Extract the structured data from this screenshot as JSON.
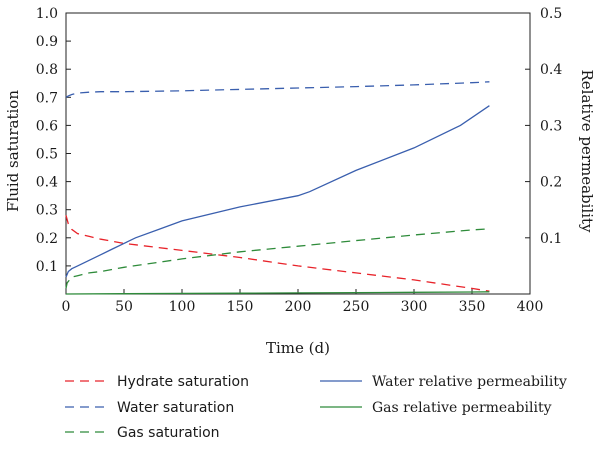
{
  "chart_data": {
    "type": "line",
    "xlabel": "Time (d)",
    "ylabel_left": "Fluid saturation",
    "ylabel_right": "Relative permeability",
    "xlim": [
      0,
      400
    ],
    "ylim_left": [
      0,
      1.0
    ],
    "ylim_right": [
      0,
      0.5
    ],
    "x_ticks": [
      "0",
      "50",
      "100",
      "150",
      "200",
      "250",
      "300",
      "350",
      "400"
    ],
    "y_left_ticks": [
      "0.1",
      "0.2",
      "0.3",
      "0.4",
      "0.5",
      "0.6",
      "0.7",
      "0.8",
      "0.9",
      "1.0"
    ],
    "y_right_ticks": [
      "0.1",
      "0.2",
      "0.3",
      "0.4",
      "0.5"
    ],
    "grid": false,
    "legend_position": "bottom",
    "series": [
      {
        "name": "Hydrate saturation",
        "axis": "left",
        "style": "dashed",
        "color": "#e8232a",
        "x": [
          0,
          2,
          5,
          10,
          20,
          30,
          50,
          100,
          150,
          200,
          250,
          300,
          350,
          365
        ],
        "y": [
          0.28,
          0.25,
          0.23,
          0.215,
          0.205,
          0.195,
          0.18,
          0.155,
          0.13,
          0.1,
          0.075,
          0.05,
          0.02,
          0.01
        ]
      },
      {
        "name": "Water saturation",
        "axis": "left",
        "style": "dashed",
        "color": "#3a5fae",
        "x": [
          0,
          2,
          5,
          10,
          20,
          30,
          50,
          100,
          150,
          200,
          250,
          300,
          350,
          365
        ],
        "y": [
          0.7,
          0.705,
          0.71,
          0.715,
          0.718,
          0.72,
          0.72,
          0.723,
          0.728,
          0.733,
          0.738,
          0.744,
          0.752,
          0.755
        ]
      },
      {
        "name": "Gas saturation",
        "axis": "left",
        "style": "dashed",
        "color": "#2e8b3a",
        "x": [
          0,
          1,
          3,
          5,
          10,
          20,
          30,
          50,
          100,
          150,
          200,
          250,
          300,
          350,
          365
        ],
        "y": [
          0.02,
          0.04,
          0.05,
          0.06,
          0.065,
          0.075,
          0.08,
          0.095,
          0.125,
          0.15,
          0.17,
          0.19,
          0.21,
          0.228,
          0.232
        ]
      },
      {
        "name": "Water relative permeability",
        "axis": "right",
        "style": "solid",
        "color": "#3a5fae",
        "x": [
          0,
          2,
          5,
          10,
          20,
          30,
          40,
          50,
          60,
          80,
          100,
          150,
          200,
          210,
          250,
          300,
          340,
          365
        ],
        "y": [
          0.03,
          0.04,
          0.045,
          0.05,
          0.06,
          0.07,
          0.08,
          0.09,
          0.1,
          0.115,
          0.13,
          0.155,
          0.175,
          0.182,
          0.22,
          0.26,
          0.3,
          0.335
        ]
      },
      {
        "name": "Gas relative permeability",
        "axis": "right",
        "style": "solid",
        "color": "#2e8b3a",
        "x": [
          0,
          50,
          100,
          150,
          200,
          250,
          300,
          350,
          365
        ],
        "y": [
          0.0,
          0.0005,
          0.001,
          0.0015,
          0.002,
          0.0025,
          0.003,
          0.0035,
          0.004
        ]
      }
    ]
  }
}
